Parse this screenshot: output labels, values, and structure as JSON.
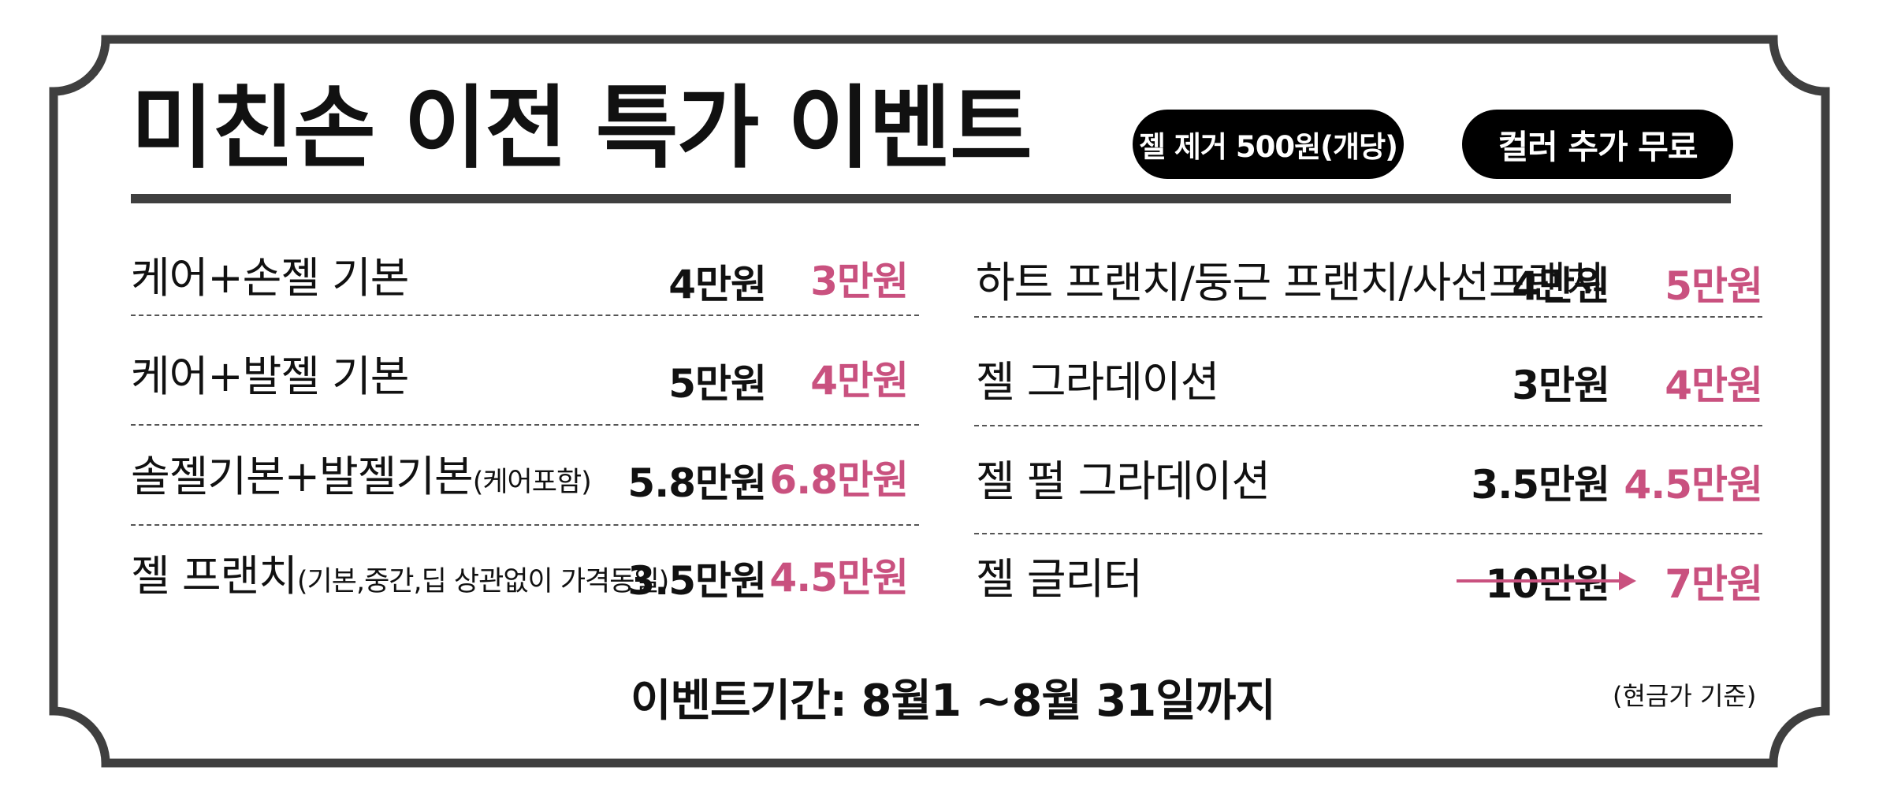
{
  "title": "미친손 이전 특가 이벤트",
  "badges": {
    "gel_removal": "젤 제거 500원(개당)",
    "color_free": "컬러 추가 무료"
  },
  "left_menu": [
    {
      "name": "케어+손젤 기본",
      "note": "",
      "old_price": "4만원",
      "new_price": "3만원"
    },
    {
      "name": "케어+발젤 기본",
      "note": "",
      "old_price": "5만원",
      "new_price": "4만원"
    },
    {
      "name": "솔젤기본+발젤기본",
      "note": "(케어포함)",
      "old_price": "5.8만원",
      "new_price": "6.8만원"
    },
    {
      "name": "젤 프랜치",
      "note": "(기본,중간,딥 상관없이 가격동일)",
      "old_price": "3.5만원",
      "new_price": "4.5만원"
    }
  ],
  "right_menu": [
    {
      "name": "하트 프랜치/둥근 프랜치/사선프랜치",
      "old_price": "4만원",
      "new_price": "5만원"
    },
    {
      "name": "젤 그라데이션",
      "old_price": "3만원",
      "new_price": "4만원"
    },
    {
      "name": "젤 펄 그라데이션",
      "old_price": "3.5만원",
      "new_price": "4.5만원"
    },
    {
      "name": "젤 글리터",
      "old_price": "10만원",
      "new_price": "7만원"
    }
  ],
  "event_period": "이벤트기간: 8월1 ~8월 31일까지",
  "cash_note": "(현금가 기준)",
  "colors": {
    "frame": "#3f3f3f",
    "accent_pink": "#c9517f",
    "badge_bg": "#000000"
  }
}
